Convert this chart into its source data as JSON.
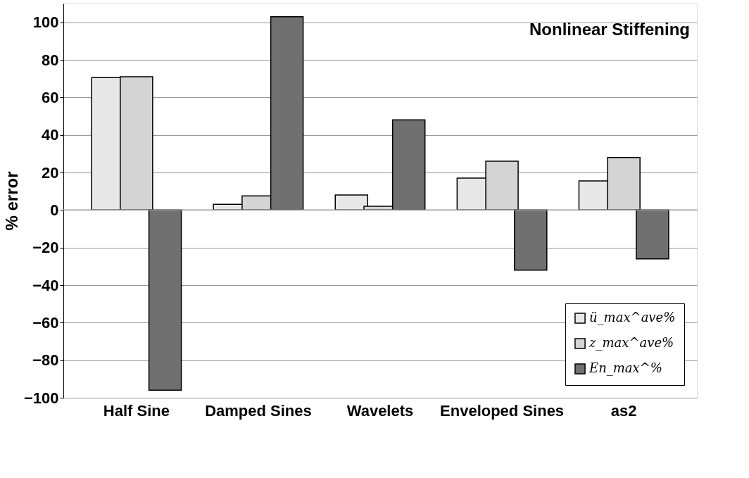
{
  "chart_data": {
    "type": "bar",
    "title": "Nonlinear Stiffening",
    "ylabel": "% error",
    "categories": [
      "Half Sine",
      "Damped Sines",
      "Wavelets",
      "Enveloped Sines",
      "as2"
    ],
    "series": [
      {
        "name": "ü_max^ave%",
        "color": "#e8e8e8",
        "values": [
          70.5,
          3,
          8,
          17,
          15.5
        ]
      },
      {
        "name": "z_max^ave%",
        "color": "#d4d4d4",
        "values": [
          71,
          7.5,
          2,
          26,
          28
        ]
      },
      {
        "name": "En_max^%",
        "color": "#707070",
        "values": [
          -96,
          103,
          48,
          -32,
          -26
        ]
      }
    ],
    "ylim": [
      -100,
      110
    ],
    "yticks": [
      -100,
      -80,
      -60,
      -40,
      -20,
      0,
      20,
      40,
      60,
      80,
      100
    ],
    "grid": "y",
    "legend": "bottom right"
  }
}
